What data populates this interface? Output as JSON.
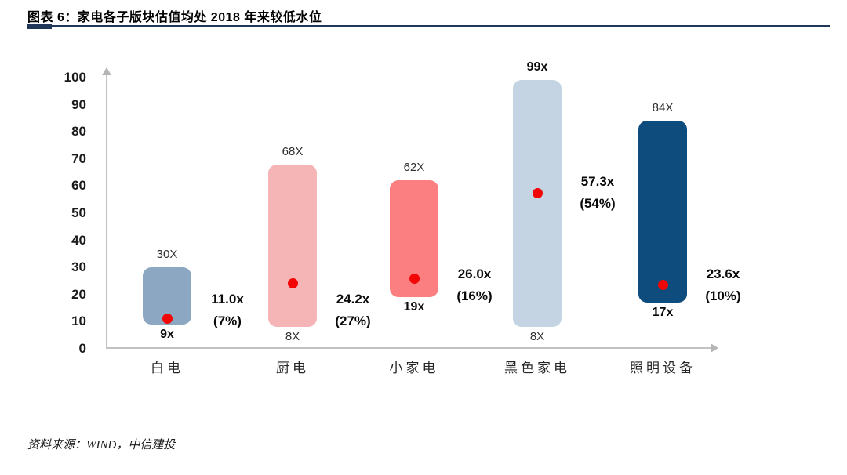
{
  "header": {
    "title": "图表 6：家电各子版块估值均处 2018 年来较低水位"
  },
  "chart_data": {
    "type": "floating-bar-range",
    "title": "家电各子版块估值均处 2018 年来较低水位",
    "xlabel": "",
    "ylabel": "",
    "ylim": [
      0,
      100
    ],
    "yticks": [
      0,
      10,
      20,
      30,
      40,
      50,
      60,
      70,
      80,
      90,
      100
    ],
    "grid": false,
    "legend": null,
    "categories": [
      "白电",
      "厨电",
      "小家电",
      "黑色家电",
      "照明设备"
    ],
    "dot_color": "#f20505",
    "axis_color": "#c2c2c2",
    "series": [
      {
        "category": "白电",
        "min": 9,
        "max": 30,
        "min_label": "9x",
        "max_label": "30X",
        "current": 11.0,
        "current_label": "11.0x",
        "percentile_label": "(7%)",
        "color": "#8ba7c2"
      },
      {
        "category": "厨电",
        "min": 8,
        "max": 68,
        "min_label": "8X",
        "max_label": "68X",
        "current": 24.2,
        "current_label": "24.2x",
        "percentile_label": "(27%)",
        "color": "#f5b5b7"
      },
      {
        "category": "小家电",
        "min": 19,
        "max": 62,
        "min_label": "19x",
        "max_label": "62X",
        "current": 26.0,
        "current_label": "26.0x",
        "percentile_label": "(16%)",
        "color": "#fb7f80"
      },
      {
        "category": "黑色家电",
        "min": 8,
        "max": 99,
        "min_label": "8X",
        "max_label": "99x",
        "current": 57.3,
        "current_label": "57.3x",
        "percentile_label": "(54%)",
        "color": "#c5d4e2"
      },
      {
        "category": "照明设备",
        "min": 17,
        "max": 84,
        "min_label": "17x",
        "max_label": "84X",
        "current": 23.6,
        "current_label": "23.6x",
        "percentile_label": "(10%)",
        "color": "#0f4c7e"
      }
    ]
  },
  "footer": {
    "source": "资料来源：WIND，中信建投"
  }
}
